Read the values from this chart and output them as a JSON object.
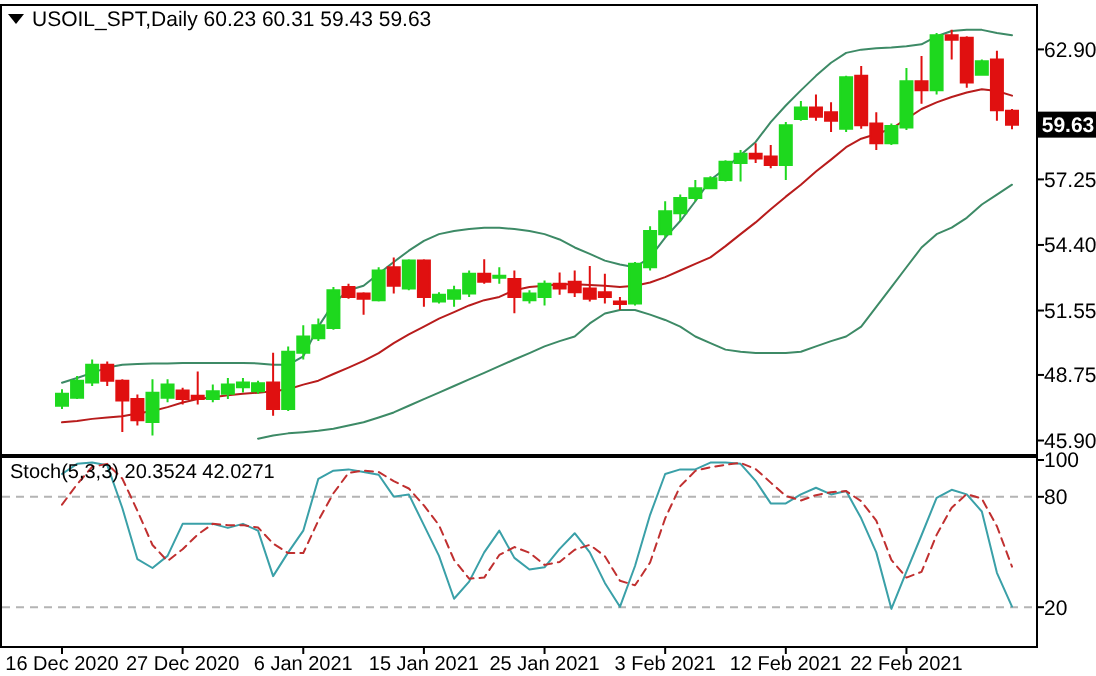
{
  "chart_data": [
    {
      "type": "candlestick",
      "title": "USOIL_SPT,Daily  60.23 60.31 59.43 59.63",
      "categories": [
        null,
        null,
        null,
        null,
        null,
        null,
        null,
        null,
        null,
        null,
        null,
        null,
        null,
        null,
        null,
        null,
        null,
        null,
        null,
        null,
        null,
        null,
        null,
        null,
        null,
        null,
        null,
        null,
        null,
        null,
        null,
        null,
        null,
        null,
        null,
        null,
        null,
        null,
        null,
        null,
        null,
        null,
        null,
        null,
        null,
        null,
        null,
        null,
        null,
        null,
        null,
        null,
        null,
        null,
        null,
        null,
        null,
        null,
        null,
        null,
        null,
        null,
        null,
        null
      ],
      "ohlc": [
        [
          47.41,
          48.13,
          47.27,
          47.93
        ],
        [
          47.76,
          48.7,
          47.7,
          48.5
        ],
        [
          48.42,
          49.42,
          48.27,
          49.19
        ],
        [
          49.19,
          49.33,
          48.27,
          48.5
        ],
        [
          48.5,
          48.56,
          46.27,
          47.64
        ],
        [
          47.7,
          47.9,
          46.55,
          46.78
        ],
        [
          46.7,
          48.56,
          46.12,
          47.98
        ],
        [
          47.76,
          48.56,
          47.56,
          48.33
        ],
        [
          48.07,
          48.19,
          47.47,
          47.7
        ],
        [
          47.84,
          48.9,
          47.47,
          47.7
        ],
        [
          47.7,
          48.33,
          47.56,
          48.04
        ],
        [
          47.93,
          48.62,
          47.7,
          48.33
        ],
        [
          48.21,
          48.62,
          47.99,
          48.42
        ],
        [
          48.04,
          48.5,
          47.93,
          48.39
        ],
        [
          48.42,
          49.71,
          46.98,
          47.27
        ],
        [
          47.27,
          49.99,
          47.18,
          49.76
        ],
        [
          49.71,
          50.91,
          49.42,
          50.42
        ],
        [
          50.34,
          51.2,
          50.22,
          50.91
        ],
        [
          50.79,
          52.57,
          50.71,
          52.43
        ],
        [
          52.57,
          52.71,
          52.06,
          52.14
        ],
        [
          52.29,
          52.34,
          51.37,
          52.06
        ],
        [
          52.0,
          53.43,
          51.94,
          53.29
        ],
        [
          53.43,
          53.86,
          52.29,
          52.63
        ],
        [
          52.51,
          53.78,
          52.43,
          53.72
        ],
        [
          53.72,
          53.78,
          51.71,
          52.14
        ],
        [
          51.94,
          52.34,
          51.86,
          52.23
        ],
        [
          52.06,
          52.63,
          51.71,
          52.43
        ],
        [
          52.29,
          53.29,
          52.14,
          53.15
        ],
        [
          53.15,
          53.78,
          52.71,
          52.8
        ],
        [
          52.97,
          53.43,
          52.71,
          53.06
        ],
        [
          52.92,
          53.29,
          51.43,
          52.14
        ],
        [
          52.0,
          52.43,
          51.86,
          52.29
        ],
        [
          52.14,
          52.86,
          51.77,
          52.71
        ],
        [
          52.71,
          53.2,
          52.23,
          52.51
        ],
        [
          52.8,
          53.29,
          52.14,
          52.34
        ],
        [
          52.51,
          53.49,
          51.94,
          52.06
        ],
        [
          52.34,
          53.15,
          51.86,
          52.14
        ],
        [
          51.94,
          52.14,
          51.57,
          51.83
        ],
        [
          51.86,
          53.66,
          51.77,
          53.58
        ],
        [
          53.43,
          55.21,
          53.29,
          55.01
        ],
        [
          54.87,
          56.3,
          54.72,
          55.87
        ],
        [
          55.78,
          56.59,
          55.44,
          56.44
        ],
        [
          56.44,
          57.22,
          56.3,
          56.87
        ],
        [
          56.87,
          57.39,
          56.82,
          57.3
        ],
        [
          57.22,
          58.08,
          57.16,
          58.02
        ],
        [
          57.96,
          58.53,
          57.16,
          58.36
        ],
        [
          58.36,
          58.82,
          57.96,
          58.16
        ],
        [
          58.25,
          58.74,
          57.73,
          57.88
        ],
        [
          57.88,
          59.74,
          57.22,
          59.6
        ],
        [
          59.88,
          60.66,
          59.8,
          60.37
        ],
        [
          60.37,
          60.94,
          59.8,
          59.97
        ],
        [
          60.17,
          60.6,
          59.31,
          59.8
        ],
        [
          59.45,
          61.75,
          59.31,
          61.69
        ],
        [
          61.75,
          62.18,
          59.45,
          59.6
        ],
        [
          59.68,
          60.17,
          58.53,
          58.82
        ],
        [
          58.82,
          59.68,
          58.74,
          59.57
        ],
        [
          59.51,
          62.09,
          59.4,
          61.52
        ],
        [
          61.52,
          62.61,
          60.54,
          61.12
        ],
        [
          61.12,
          63.61,
          60.94,
          63.52
        ],
        [
          63.52,
          63.75,
          62.46,
          63.32
        ],
        [
          63.41,
          63.47,
          61.23,
          61.46
        ],
        [
          61.8,
          62.46,
          61.75,
          62.38
        ],
        [
          62.46,
          62.84,
          59.8,
          60.26
        ],
        [
          60.23,
          60.31,
          59.43,
          59.63
        ]
      ],
      "colors": [
        "#1ed81e",
        "#1ed81e",
        "#1ed81e",
        "#e01010",
        "#e01010",
        "#e01010",
        "#1ed81e",
        "#1ed81e",
        "#e01010",
        "#e01010",
        "#1ed81e",
        "#1ed81e",
        "#1ed81e",
        "#1ed81e",
        "#e01010",
        "#1ed81e",
        "#1ed81e",
        "#1ed81e",
        "#1ed81e",
        "#e01010",
        "#e01010",
        "#1ed81e",
        "#e01010",
        "#1ed81e",
        "#e01010",
        "#1ed81e",
        "#1ed81e",
        "#1ed81e",
        "#e01010",
        "#1ed81e",
        "#e01010",
        "#1ed81e",
        "#1ed81e",
        "#e01010",
        "#e01010",
        "#e01010",
        "#e01010",
        "#e01010",
        "#1ed81e",
        "#1ed81e",
        "#1ed81e",
        "#1ed81e",
        "#1ed81e",
        "#1ed81e",
        "#1ed81e",
        "#1ed81e",
        "#e01010",
        "#e01010",
        "#1ed81e",
        "#1ed81e",
        "#e01010",
        "#e01010",
        "#1ed81e",
        "#e01010",
        "#e01010",
        "#1ed81e",
        "#1ed81e",
        "#e01010",
        "#1ed81e",
        "#e01010",
        "#e01010",
        "#1ed81e",
        "#e01010",
        "#e01010"
      ],
      "series": [
        {
          "type": "line",
          "color": "#3d8a66",
          "values": [
            48.41,
            48.62,
            48.84,
            49.07,
            49.19,
            49.22,
            49.25,
            49.25,
            49.27,
            49.27,
            49.27,
            49.27,
            49.27,
            49.25,
            49.19,
            49.19,
            49.56,
            50.85,
            51.85,
            52.43,
            52.63,
            53.15,
            53.66,
            54.15,
            54.58,
            54.87,
            55.01,
            55.09,
            55.15,
            55.15,
            55.09,
            55.01,
            54.87,
            54.64,
            54.29,
            54.01,
            53.72,
            53.55,
            53.43,
            53.86,
            54.72,
            55.44,
            56.3,
            57.22,
            57.73,
            58.31,
            58.88,
            59.74,
            60.46,
            61.12,
            61.75,
            62.32,
            62.75,
            62.89,
            62.95,
            62.98,
            63.04,
            63.12,
            63.47,
            63.7,
            63.75,
            63.75,
            63.61,
            63.52
          ]
        },
        {
          "type": "line",
          "color": "#b81c1c",
          "values": [
            46.69,
            46.75,
            46.84,
            46.9,
            46.95,
            47.07,
            47.18,
            47.35,
            47.55,
            47.7,
            47.78,
            47.87,
            47.93,
            47.98,
            48.04,
            48.13,
            48.33,
            48.5,
            48.79,
            49.07,
            49.36,
            49.7,
            50.13,
            50.51,
            50.85,
            51.2,
            51.48,
            51.77,
            52.0,
            52.14,
            52.43,
            52.57,
            52.63,
            52.69,
            52.69,
            52.66,
            52.63,
            52.57,
            52.63,
            52.77,
            53.0,
            53.29,
            53.58,
            53.86,
            54.35,
            54.87,
            55.38,
            55.95,
            56.5,
            57.02,
            57.59,
            58.11,
            58.65,
            59.02,
            59.22,
            59.45,
            59.88,
            60.31,
            60.6,
            60.83,
            61.03,
            61.17,
            61.09,
            60.89
          ]
        },
        {
          "type": "line",
          "color": "#3d8a66",
          "values": [
            null,
            null,
            null,
            null,
            null,
            null,
            null,
            null,
            null,
            null,
            null,
            null,
            null,
            45.98,
            46.12,
            46.21,
            46.26,
            46.32,
            46.41,
            46.55,
            46.69,
            46.9,
            47.12,
            47.41,
            47.7,
            47.98,
            48.27,
            48.56,
            48.84,
            49.13,
            49.42,
            49.7,
            49.99,
            50.22,
            50.42,
            50.99,
            51.42,
            51.57,
            51.57,
            51.37,
            51.14,
            50.85,
            50.42,
            50.13,
            49.85,
            49.76,
            49.7,
            49.7,
            49.7,
            49.76,
            49.99,
            50.22,
            50.42,
            50.85,
            51.71,
            52.57,
            53.43,
            54.29,
            54.87,
            55.15,
            55.58,
            56.16,
            56.59,
            57.02
          ]
        }
      ],
      "ylim": [
        45.4,
        64.7
      ],
      "yticks": [
        {
          "value": 62.9,
          "label": "62.90"
        },
        {
          "value": 60.1,
          "label": null
        },
        {
          "value": 57.25,
          "label": "57.25"
        },
        {
          "value": 54.4,
          "label": "54.40"
        },
        {
          "value": 51.55,
          "label": "51.55"
        },
        {
          "value": 48.75,
          "label": "48.75"
        },
        {
          "value": 45.9,
          "label": "45.90"
        }
      ],
      "tick_labels": "y",
      "annotations": [
        "59.63"
      ]
    },
    {
      "type": "line",
      "title": "Stoch(5,3,3) 20.3524 42.0271",
      "categories": [
        "16 Dec 2020",
        null,
        null,
        null,
        null,
        null,
        null,
        null,
        "27 Dec 2020",
        null,
        null,
        null,
        null,
        null,
        null,
        null,
        "6 Jan 2021",
        null,
        null,
        null,
        null,
        null,
        null,
        null,
        "15 Jan 2021",
        null,
        null,
        null,
        null,
        null,
        null,
        null,
        "25 Jan 2021",
        null,
        null,
        null,
        null,
        null,
        null,
        null,
        "3 Feb 2021",
        null,
        null,
        null,
        null,
        null,
        null,
        null,
        "12 Feb 2021",
        null,
        null,
        null,
        null,
        null,
        null,
        null,
        "22 Feb 2021",
        null,
        null,
        null,
        null,
        null,
        null,
        null
      ],
      "series": [
        {
          "color": "#3aa0a8",
          "line_style": "solid",
          "values": [
            92.4,
            97.9,
            98.6,
            97.2,
            73.9,
            46.1,
            41.3,
            47.9,
            65.3,
            65.3,
            65.3,
            63.1,
            65.3,
            61.6,
            36.9,
            49.8,
            61.6,
            89.8,
            94.2,
            94.9,
            93.5,
            92.0,
            80.1,
            81.3,
            64.6,
            47.9,
            24.6,
            33.9,
            49.8,
            61.6,
            46.8,
            40.5,
            41.7,
            51.7,
            60.2,
            49.8,
            33.2,
            20.2,
            42.4,
            70.2,
            92.4,
            94.9,
            94.9,
            98.6,
            98.6,
            97.9,
            88.7,
            76.4,
            76.4,
            81.3,
            84.9,
            81.3,
            83.1,
            68.3,
            49.8,
            19.1,
            39.4,
            59.1,
            79.4,
            83.8,
            81.3,
            72.0,
            38.7,
            20.35
          ]
        },
        {
          "color": "#c03030",
          "line_style": "dashed",
          "values": [
            75.7,
            86.8,
            96.3,
            97.9,
            89.9,
            72.4,
            53.8,
            45.1,
            51.5,
            59.5,
            65.3,
            64.6,
            64.6,
            63.3,
            54.6,
            49.4,
            49.4,
            67.1,
            81.9,
            93.0,
            94.2,
            93.5,
            88.5,
            84.5,
            75.3,
            64.6,
            45.7,
            35.5,
            36.1,
            48.4,
            52.7,
            49.6,
            43.0,
            44.6,
            51.2,
            53.9,
            47.7,
            34.4,
            31.9,
            44.3,
            68.3,
            85.8,
            94.1,
            96.1,
            97.4,
            98.4,
            95.1,
            87.7,
            80.5,
            78.0,
            80.9,
            82.5,
            83.1,
            77.6,
            67.1,
            45.7,
            36.1,
            39.2,
            59.3,
            74.1,
            81.5,
            79.0,
            64.0,
            42.03
          ]
        }
      ],
      "ylim": [
        0,
        100
      ],
      "yticks": [
        100,
        80,
        20
      ],
      "ref_lines": [
        {
          "axis": "y",
          "value": 80,
          "color": "#b4b4b4",
          "line_style": "dashed"
        },
        {
          "axis": "y",
          "value": 20,
          "color": "#b4b4b4",
          "line_style": "dashed"
        }
      ]
    }
  ]
}
